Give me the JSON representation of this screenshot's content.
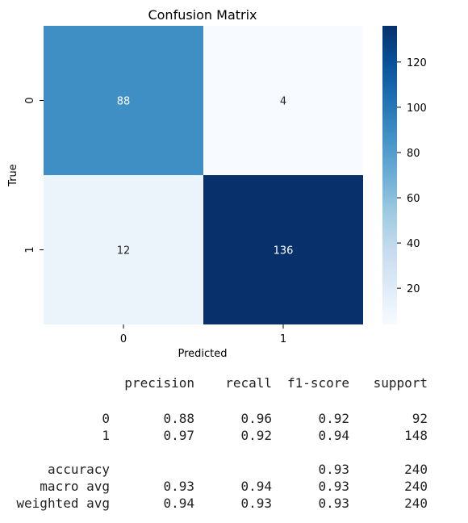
{
  "chart_data": {
    "type": "heatmap",
    "title": "Confusion Matrix",
    "xlabel": "Predicted",
    "ylabel": "True",
    "x_categories": [
      "0",
      "1"
    ],
    "y_categories": [
      "0",
      "1"
    ],
    "matrix": [
      [
        88,
        4
      ],
      [
        12,
        136
      ]
    ],
    "colormap": "Blues",
    "vmin": 4,
    "vmax": 136,
    "colorbar_ticks": [
      20,
      40,
      60,
      80,
      100,
      120
    ]
  },
  "report": {
    "header": [
      "precision",
      "recall",
      "f1-score",
      "support"
    ],
    "class_rows": [
      {
        "label": "0",
        "precision": "0.88",
        "recall": "0.96",
        "f1": "0.92",
        "support": "92"
      },
      {
        "label": "1",
        "precision": "0.97",
        "recall": "0.92",
        "f1": "0.94",
        "support": "148"
      }
    ],
    "summary_rows": [
      {
        "label": "accuracy",
        "precision": "",
        "recall": "",
        "f1": "0.93",
        "support": "240"
      },
      {
        "label": "macro avg",
        "precision": "0.93",
        "recall": "0.94",
        "f1": "0.93",
        "support": "240"
      },
      {
        "label": "weighted avg",
        "precision": "0.94",
        "recall": "0.93",
        "f1": "0.93",
        "support": "240"
      }
    ]
  }
}
